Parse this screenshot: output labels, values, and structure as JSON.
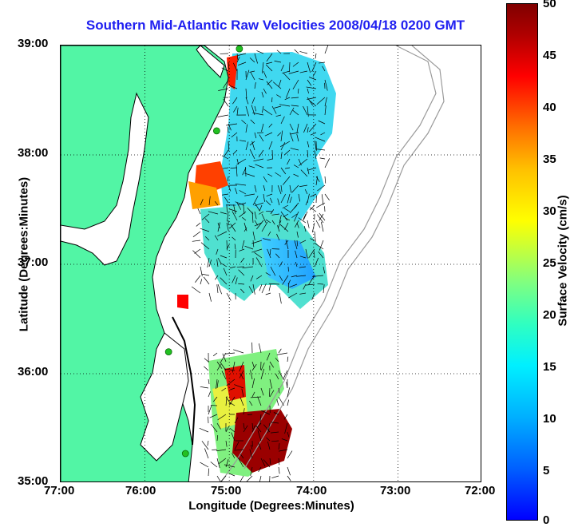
{
  "title": "Southern Mid-Atlantic Raw Velocities 2008/04/18 0200 GMT",
  "xlabel": "Longitude (Degrees:Minutes)",
  "ylabel": "Latitude (Degrees:Minutes)",
  "colorbar_label": "Surface Velocity (cm/s)",
  "x_ticks": [
    "77:00",
    "76:00",
    "75:00",
    "74:00",
    "73:00",
    "72:00"
  ],
  "y_ticks": [
    "39:00",
    "38:00",
    "37:00",
    "36:00",
    "35:00"
  ],
  "colorbar_ticks": [
    "50",
    "45",
    "40",
    "35",
    "30",
    "25",
    "20",
    "15",
    "10",
    "5",
    "0"
  ],
  "colors": {
    "land": "#52f5a5",
    "coast": "#000000",
    "title": "#1f1ff0",
    "bathymetry": "#9a9a9a",
    "station": "#22c022"
  },
  "map": {
    "lon_range": [
      -77,
      -72
    ],
    "lat_range": [
      35,
      39
    ],
    "colormap_range": [
      0,
      50
    ],
    "grid": "dotted",
    "stations": [
      {
        "lon": -74.88,
        "lat": 38.97
      },
      {
        "lon": -75.15,
        "lat": 38.22
      },
      {
        "lon": -75.72,
        "lat": 36.2
      },
      {
        "lon": -75.52,
        "lat": 35.27
      }
    ]
  }
}
